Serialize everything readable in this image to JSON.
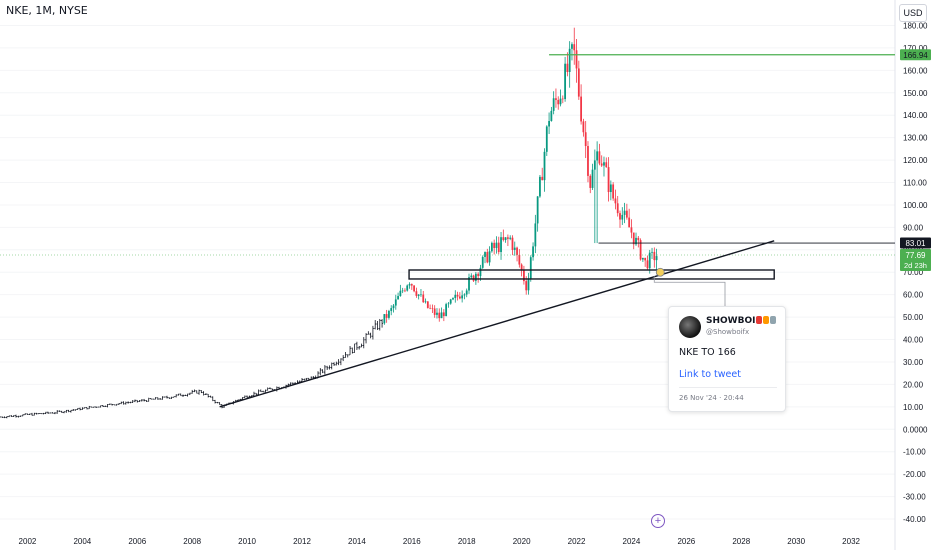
{
  "header": {
    "symbol": "NKE, 1M, NYSE",
    "currency": "USD"
  },
  "chart_data": {
    "type": "candlestick",
    "x_ticks": [
      "2002",
      "2004",
      "2006",
      "2008",
      "2010",
      "2012",
      "2014",
      "2016",
      "2018",
      "2020",
      "2022",
      "2024",
      "2026",
      "2028",
      "2030",
      "2032"
    ],
    "y_ticks": [
      "180.00",
      "170.00",
      "160.00",
      "150.00",
      "140.00",
      "130.00",
      "120.00",
      "110.00",
      "100.00",
      "90.00",
      "80.00",
      "70.00",
      "60.00",
      "50.00",
      "40.00",
      "30.00",
      "20.00",
      "10.00",
      "0.0000",
      "-10.00",
      "-20.00",
      "-30.00",
      "-40.00"
    ],
    "ylim": [
      -44,
      186
    ],
    "xlim": [
      2001.0,
      2033.6
    ],
    "colors": {
      "up": "#089981",
      "down": "#f23645",
      "bars": "#131722",
      "target": "#4caf50",
      "current": "#4caf50"
    },
    "keypoints": [
      [
        2001.0,
        5.5
      ],
      [
        2003.0,
        7.5
      ],
      [
        2005.0,
        11
      ],
      [
        2007.0,
        14
      ],
      [
        2008.3,
        17
      ],
      [
        2009.1,
        10
      ],
      [
        2010.0,
        15
      ],
      [
        2011.2,
        19
      ],
      [
        2012.4,
        23
      ],
      [
        2013.3,
        31
      ],
      [
        2014.2,
        39
      ],
      [
        2015.2,
        52
      ],
      [
        2015.9,
        67
      ],
      [
        2016.5,
        55
      ],
      [
        2017.0,
        50
      ],
      [
        2018.0,
        64
      ],
      [
        2018.9,
        80
      ],
      [
        2019.6,
        85
      ],
      [
        2020.2,
        63
      ],
      [
        2020.5,
        92
      ],
      [
        2021.0,
        140
      ],
      [
        2021.4,
        150
      ],
      [
        2021.9,
        168
      ],
      [
        2022.5,
        110
      ],
      [
        2022.8,
        125
      ],
      [
        2023.3,
        104
      ],
      [
        2023.7,
        95
      ],
      [
        2024.0,
        88
      ],
      [
        2024.5,
        74
      ],
      [
        2024.9,
        77.7
      ]
    ],
    "target_price": {
      "value": 166.94,
      "label": "166.94",
      "from_year": 2021.0
    },
    "resistance_line": {
      "value": 83.01,
      "label": "83.01",
      "from_year": 2022.8
    },
    "current_price": {
      "value": 77.69,
      "label": "77.69",
      "countdown": "2d 23h"
    },
    "trendline": {
      "from": [
        2009.0,
        10
      ],
      "to": [
        2029.2,
        84
      ]
    },
    "support_zone": {
      "from_year": 2015.9,
      "to_year": 2029.2,
      "low": 67,
      "high": 71
    },
    "marker": {
      "year": 2025.05,
      "value": 70
    }
  },
  "tweet": {
    "name": "SHOWBOI",
    "handle": "@Showboifx",
    "text": "NKE TO 166",
    "link_label": "Link to tweet",
    "date": "26 Nov '24 · 20:44"
  }
}
